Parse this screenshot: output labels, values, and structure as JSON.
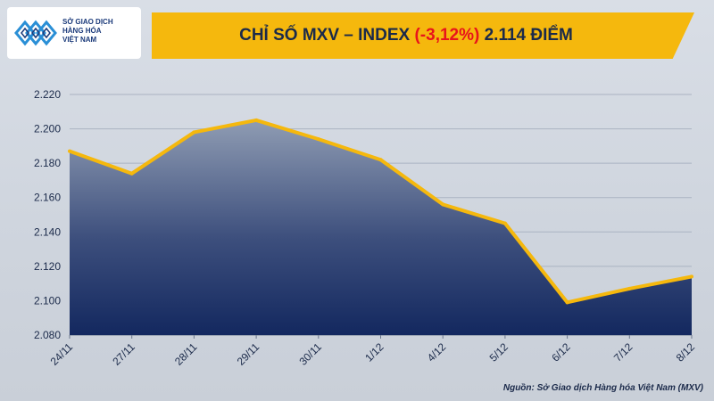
{
  "header": {
    "logo": {
      "line1": "SỞ GIAO DỊCH",
      "line2": "HÀNG HÓA",
      "line3": "VIỆT NAM"
    },
    "title_prefix": "CHỈ SỐ MXV – INDEX ",
    "title_change": "(-3,12%)",
    "title_suffix": " 2.114 ĐIỂM"
  },
  "source": "Nguồn: Sở Giao dịch Hàng hóa Việt Nam (MXV)",
  "colors": {
    "title_band": "#f5b80d",
    "negative_change": "#e8141b",
    "line": "#f5b80d",
    "area_top": "#8f9cb3",
    "area_bottom": "#13285f"
  },
  "chart_data": {
    "type": "area",
    "categories": [
      "24/11",
      "27/11",
      "28/11",
      "29/11",
      "30/11",
      "1/12",
      "4/12",
      "5/12",
      "6/12",
      "7/12",
      "8/12"
    ],
    "values": [
      2187,
      2174,
      2198,
      2205,
      2194,
      2182,
      2156,
      2145,
      2099,
      2107,
      2114
    ],
    "yticks": [
      "2.080",
      "2.100",
      "2.120",
      "2.140",
      "2.160",
      "2.180",
      "2.200",
      "2.220"
    ],
    "ylim": [
      2080,
      2220
    ],
    "grid": true,
    "legend": "none"
  }
}
